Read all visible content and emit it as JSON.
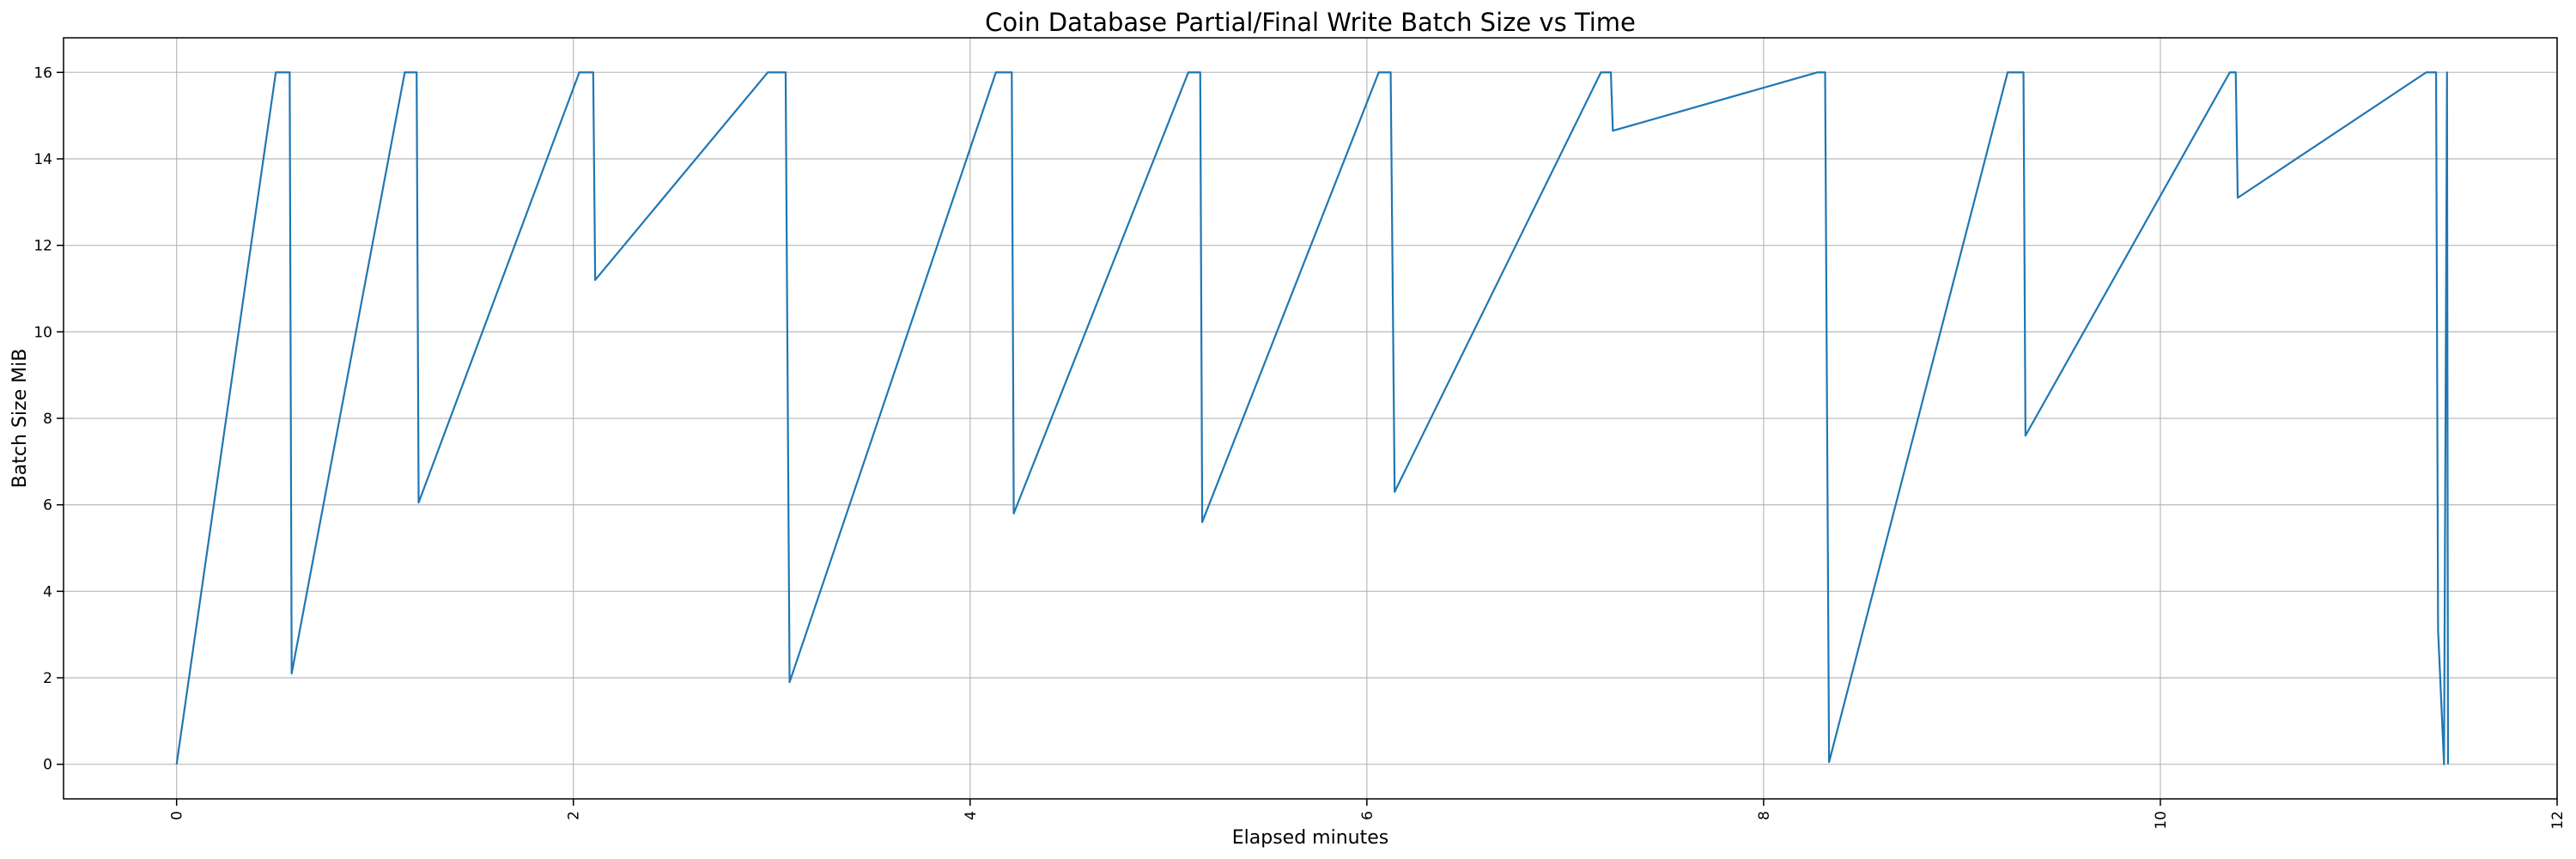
{
  "chart_data": {
    "type": "line",
    "title": "Coin Database Partial/Final Write Batch Size vs Time",
    "xlabel": "Elapsed minutes",
    "ylabel": "Batch Size MiB",
    "xlim": [
      -0.57,
      12.0
    ],
    "ylim": [
      -0.8,
      16.8
    ],
    "xticks": [
      0,
      2,
      4,
      6,
      8,
      10,
      12
    ],
    "xtick_labels": [
      "0",
      "2",
      "4",
      "6",
      "8",
      "10",
      "12"
    ],
    "xtick_rotation": -90,
    "yticks": [
      0,
      2,
      4,
      6,
      8,
      10,
      12,
      14,
      16
    ],
    "ytick_labels": [
      "0",
      "2",
      "4",
      "6",
      "8",
      "10",
      "12",
      "14",
      "16"
    ],
    "grid": true,
    "line_color": "#1f77b4",
    "series": [
      {
        "x": [
          0,
          0.5,
          0.57,
          0.58,
          1.15,
          1.21,
          1.22,
          2.03,
          2.1,
          2.11,
          2.98,
          3.07,
          3.09,
          4.13,
          4.21,
          4.22,
          5.1,
          5.16,
          5.17,
          6.06,
          6.12,
          6.14,
          7.18,
          7.23,
          7.24,
          8.27,
          8.31,
          8.33,
          9.23,
          9.31,
          9.32,
          10.35,
          10.38,
          10.39,
          11.34,
          11.39,
          11.4,
          11.43,
          11.445,
          11.45
        ],
        "y": [
          0,
          16.0,
          16.0,
          2.1,
          16.0,
          16.0,
          6.05,
          16.0,
          16.0,
          11.2,
          16.0,
          16.0,
          1.9,
          16.0,
          16.0,
          5.8,
          16.0,
          16.0,
          5.6,
          16.0,
          16.0,
          6.3,
          16.0,
          16.0,
          14.65,
          16.0,
          16.0,
          0.05,
          16.0,
          16.0,
          7.6,
          16.0,
          16.0,
          13.1,
          16.0,
          16.0,
          3.1,
          0.0,
          16.0,
          0.0
        ]
      }
    ]
  }
}
